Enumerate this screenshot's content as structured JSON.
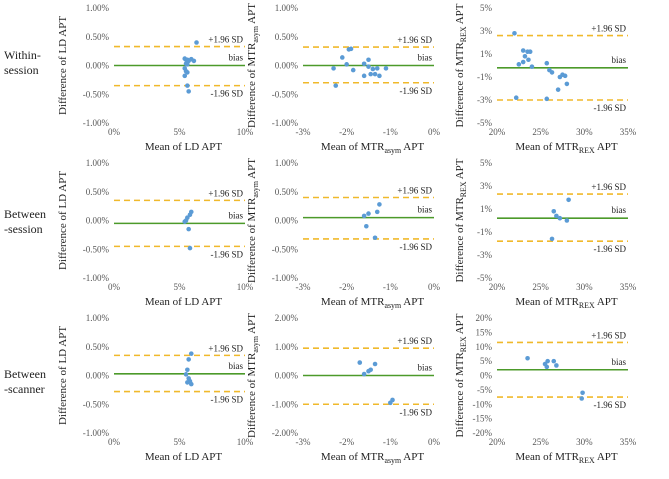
{
  "row_labels": [
    {
      "line1": "Within-",
      "line2": "session"
    },
    {
      "line1": "Between",
      "line2": "-session"
    },
    {
      "line1": "Between",
      "line2": "-scanner"
    }
  ],
  "colors": {
    "bias": "#4c9a2a",
    "limits": "#f0b92b",
    "points": "#5b9bd5",
    "text": "#222222"
  },
  "annotation_labels": {
    "upper": "+1.96 SD",
    "bias": "bias",
    "lower": "-1.96 SD"
  },
  "chart_data": [
    {
      "type": "scatter",
      "row": 0,
      "col": 0,
      "title": "",
      "xlabel": {
        "main": "Mean of LD APT",
        "sub": "",
        "tail": ""
      },
      "ylabel": {
        "main": "Difference of LD APT",
        "sub": "",
        "tail": ""
      },
      "xlim": [
        0,
        10
      ],
      "ylim": [
        -1,
        1
      ],
      "xticks": [
        0,
        5,
        10
      ],
      "xtick_labels": [
        "0%",
        "5%",
        "10%"
      ],
      "yticks": [
        -1,
        -0.5,
        0,
        0.5,
        1
      ],
      "ytick_labels": [
        "-1.00%",
        "-0.50%",
        "0.00%",
        "0.50%",
        "1.00%"
      ],
      "bias": 0.0,
      "upper": 0.33,
      "lower": -0.35,
      "points": [
        [
          6.3,
          0.4
        ],
        [
          5.4,
          0.12
        ],
        [
          5.5,
          0.1
        ],
        [
          5.6,
          0.1
        ],
        [
          5.7,
          0.08
        ],
        [
          5.9,
          0.11
        ],
        [
          6.1,
          0.08
        ],
        [
          5.5,
          0.03
        ],
        [
          5.6,
          0.02
        ],
        [
          5.4,
          -0.05
        ],
        [
          5.5,
          -0.1
        ],
        [
          5.6,
          -0.12
        ],
        [
          5.4,
          -0.18
        ],
        [
          5.6,
          -0.35
        ],
        [
          5.7,
          -0.45
        ]
      ]
    },
    {
      "type": "scatter",
      "row": 0,
      "col": 1,
      "title": "",
      "xlabel": {
        "main": "Mean of MTR",
        "sub": "asym",
        "tail": " APT"
      },
      "ylabel": {
        "main": "Difference of MTR",
        "sub": "asym",
        "tail": " APT"
      },
      "xlim": [
        -3,
        0
      ],
      "ylim": [
        -1,
        1
      ],
      "xticks": [
        -3,
        -2,
        -1,
        0
      ],
      "xtick_labels": [
        "-3%",
        "-2%",
        "-1%",
        "0%"
      ],
      "yticks": [
        -1,
        -0.5,
        0,
        0.5,
        1
      ],
      "ytick_labels": [
        "-1.00%",
        "-0.50%",
        "0.00%",
        "0.50%",
        "1.00%"
      ],
      "bias": 0.0,
      "upper": 0.32,
      "lower": -0.3,
      "points": [
        [
          -1.9,
          0.29
        ],
        [
          -1.95,
          0.28
        ],
        [
          -2.1,
          0.14
        ],
        [
          -1.5,
          0.1
        ],
        [
          -2.0,
          0.02
        ],
        [
          -1.6,
          0.03
        ],
        [
          -1.5,
          -0.02
        ],
        [
          -2.3,
          -0.05
        ],
        [
          -1.4,
          -0.06
        ],
        [
          -1.3,
          -0.05
        ],
        [
          -1.1,
          -0.05
        ],
        [
          -1.85,
          -0.08
        ],
        [
          -1.45,
          -0.15
        ],
        [
          -1.6,
          -0.18
        ],
        [
          -1.35,
          -0.15
        ],
        [
          -1.25,
          -0.18
        ],
        [
          -2.25,
          -0.35
        ]
      ]
    },
    {
      "type": "scatter",
      "row": 0,
      "col": 2,
      "title": "",
      "xlabel": {
        "main": "Mean of MTR",
        "sub": "REX",
        "tail": " APT"
      },
      "ylabel": {
        "main": "Difference of MTR",
        "sub": "REX",
        "tail": " APT"
      },
      "xlim": [
        20,
        35
      ],
      "ylim": [
        -5,
        5
      ],
      "xticks": [
        20,
        25,
        30,
        35
      ],
      "xtick_labels": [
        "20%",
        "25%",
        "30%",
        "35%"
      ],
      "yticks": [
        -5,
        -3,
        -1,
        1,
        3,
        5
      ],
      "ytick_labels": [
        "-5%",
        "-3%",
        "-1%",
        "1%",
        "3%",
        "5%"
      ],
      "bias": -0.2,
      "upper": 2.6,
      "lower": -3.0,
      "points": [
        [
          22.0,
          2.8
        ],
        [
          23.0,
          1.3
        ],
        [
          23.5,
          1.2
        ],
        [
          23.8,
          1.2
        ],
        [
          23.2,
          0.8
        ],
        [
          23.6,
          0.5
        ],
        [
          23.0,
          0.3
        ],
        [
          22.5,
          0.1
        ],
        [
          25.7,
          0.2
        ],
        [
          24.0,
          -0.1
        ],
        [
          26.3,
          -0.6
        ],
        [
          26.0,
          -0.4
        ],
        [
          27.5,
          -0.8
        ],
        [
          27.8,
          -0.9
        ],
        [
          27.2,
          -1.0
        ],
        [
          28.0,
          -1.6
        ],
        [
          27.0,
          -2.1
        ],
        [
          22.2,
          -2.8
        ],
        [
          25.7,
          -2.9
        ]
      ]
    },
    {
      "type": "scatter",
      "row": 1,
      "col": 0,
      "title": "",
      "xlabel": {
        "main": "Mean of LD APT",
        "sub": "",
        "tail": ""
      },
      "ylabel": {
        "main": "Difference of LD APT",
        "sub": "",
        "tail": ""
      },
      "xlim": [
        0,
        10
      ],
      "ylim": [
        -1,
        1
      ],
      "xticks": [
        0,
        5,
        10
      ],
      "xtick_labels": [
        "0%",
        "5%",
        "10%"
      ],
      "yticks": [
        -1,
        -0.5,
        0,
        0.5,
        1
      ],
      "ytick_labels": [
        "-1.00%",
        "-0.50%",
        "0.00%",
        "0.50%",
        "1.00%"
      ],
      "bias": -0.05,
      "upper": 0.35,
      "lower": -0.45,
      "points": [
        [
          5.9,
          0.15
        ],
        [
          5.8,
          0.1
        ],
        [
          5.6,
          0.05
        ],
        [
          5.5,
          0.0
        ],
        [
          5.4,
          -0.02
        ],
        [
          5.7,
          -0.15
        ],
        [
          5.8,
          -0.48
        ]
      ]
    },
    {
      "type": "scatter",
      "row": 1,
      "col": 1,
      "title": "",
      "xlabel": {
        "main": "Mean of MTR",
        "sub": "asym",
        "tail": " APT"
      },
      "ylabel": {
        "main": "Difference of MTR",
        "sub": "asym",
        "tail": " APT"
      },
      "xlim": [
        -3,
        0
      ],
      "ylim": [
        -1,
        1
      ],
      "xticks": [
        -3,
        -2,
        -1,
        0
      ],
      "xtick_labels": [
        "-3%",
        "-2%",
        "-1%",
        "0%"
      ],
      "yticks": [
        -1,
        -0.5,
        0,
        0.5,
        1
      ],
      "ytick_labels": [
        "-1.00%",
        "-0.50%",
        "0.00%",
        "0.50%",
        "1.00%"
      ],
      "bias": 0.05,
      "upper": 0.4,
      "lower": -0.32,
      "points": [
        [
          -1.25,
          0.28
        ],
        [
          -1.5,
          0.12
        ],
        [
          -1.3,
          0.15
        ],
        [
          -1.6,
          0.08
        ],
        [
          -1.55,
          -0.1
        ],
        [
          -1.35,
          -0.3
        ]
      ]
    },
    {
      "type": "scatter",
      "row": 1,
      "col": 2,
      "title": "",
      "xlabel": {
        "main": "Mean of MTR",
        "sub": "REX",
        "tail": " APT"
      },
      "ylabel": {
        "main": "Difference of MTR",
        "sub": "REX",
        "tail": " APT"
      },
      "xlim": [
        20,
        35
      ],
      "ylim": [
        -5,
        5
      ],
      "xticks": [
        20,
        25,
        30,
        35
      ],
      "xtick_labels": [
        "20%",
        "25%",
        "30%",
        "35%"
      ],
      "yticks": [
        -5,
        -3,
        -1,
        1,
        3,
        5
      ],
      "ytick_labels": [
        "-5%",
        "-3%",
        "-1%",
        "1%",
        "3%",
        "5%"
      ],
      "bias": 0.2,
      "upper": 2.3,
      "lower": -1.8,
      "points": [
        [
          28.2,
          1.8
        ],
        [
          26.5,
          0.8
        ],
        [
          26.8,
          0.4
        ],
        [
          27.2,
          0.2
        ],
        [
          28.0,
          0.0
        ],
        [
          26.3,
          -1.6
        ]
      ]
    },
    {
      "type": "scatter",
      "row": 2,
      "col": 0,
      "title": "",
      "xlabel": {
        "main": "Mean of LD APT",
        "sub": "",
        "tail": ""
      },
      "ylabel": {
        "main": "Difference of LD APT",
        "sub": "",
        "tail": ""
      },
      "xlim": [
        0,
        10
      ],
      "ylim": [
        -1,
        1
      ],
      "xticks": [
        0,
        5,
        10
      ],
      "xtick_labels": [
        "0%",
        "5%",
        "10%"
      ],
      "yticks": [
        -1,
        -0.5,
        0,
        0.5,
        1
      ],
      "ytick_labels": [
        "-1.00%",
        "-0.50%",
        "0.00%",
        "0.50%",
        "1.00%"
      ],
      "bias": 0.03,
      "upper": 0.35,
      "lower": -0.28,
      "points": [
        [
          5.9,
          0.38
        ],
        [
          5.7,
          0.28
        ],
        [
          5.6,
          0.1
        ],
        [
          5.5,
          0.02
        ],
        [
          5.7,
          -0.05
        ],
        [
          5.8,
          -0.1
        ],
        [
          5.6,
          -0.12
        ],
        [
          5.9,
          -0.15
        ]
      ]
    },
    {
      "type": "scatter",
      "row": 2,
      "col": 1,
      "title": "",
      "xlabel": {
        "main": "Mean of MTR",
        "sub": "asym",
        "tail": " APT"
      },
      "ylabel": {
        "main": "Difference of MTR",
        "sub": "asym",
        "tail": " APT"
      },
      "xlim": [
        -3,
        0
      ],
      "ylim": [
        -2,
        2
      ],
      "xticks": [
        -3,
        -2,
        -1,
        0
      ],
      "xtick_labels": [
        "-3%",
        "-2%",
        "-1%",
        "0%"
      ],
      "yticks": [
        -2,
        -1,
        0,
        1,
        2
      ],
      "ytick_labels": [
        "-2.00%",
        "-1.00%",
        "0.00%",
        "1.00%",
        "2.00%"
      ],
      "bias": 0.0,
      "upper": 0.95,
      "lower": -1.0,
      "points": [
        [
          -1.7,
          0.45
        ],
        [
          -1.35,
          0.4
        ],
        [
          -1.45,
          0.2
        ],
        [
          -1.5,
          0.15
        ],
        [
          -1.6,
          0.05
        ],
        [
          -0.95,
          -0.85
        ],
        [
          -1.0,
          -0.95
        ]
      ]
    },
    {
      "type": "scatter",
      "row": 2,
      "col": 2,
      "title": "",
      "xlabel": {
        "main": "Mean of MTR",
        "sub": "REX",
        "tail": " APT"
      },
      "ylabel": {
        "main": "Difference of MTR",
        "sub": "REX",
        "tail": " APT"
      },
      "xlim": [
        20,
        35
      ],
      "ylim": [
        -20,
        20
      ],
      "xticks": [
        20,
        25,
        30,
        35
      ],
      "xtick_labels": [
        "20%",
        "25%",
        "30%",
        "35%"
      ],
      "yticks": [
        -20,
        -15,
        -10,
        -5,
        0,
        5,
        10,
        15,
        20
      ],
      "ytick_labels": [
        "-20%",
        "-15%",
        "-10%",
        "-5%",
        "0%",
        "5%",
        "10%",
        "15%",
        "20%"
      ],
      "bias": 2.0,
      "upper": 11.5,
      "lower": -7.5,
      "points": [
        [
          23.5,
          6.0
        ],
        [
          25.8,
          5.0
        ],
        [
          26.5,
          5.0
        ],
        [
          25.5,
          4.0
        ],
        [
          26.8,
          3.5
        ],
        [
          25.7,
          3.0
        ],
        [
          29.8,
          -6.0
        ],
        [
          29.7,
          -8.0
        ]
      ]
    }
  ]
}
